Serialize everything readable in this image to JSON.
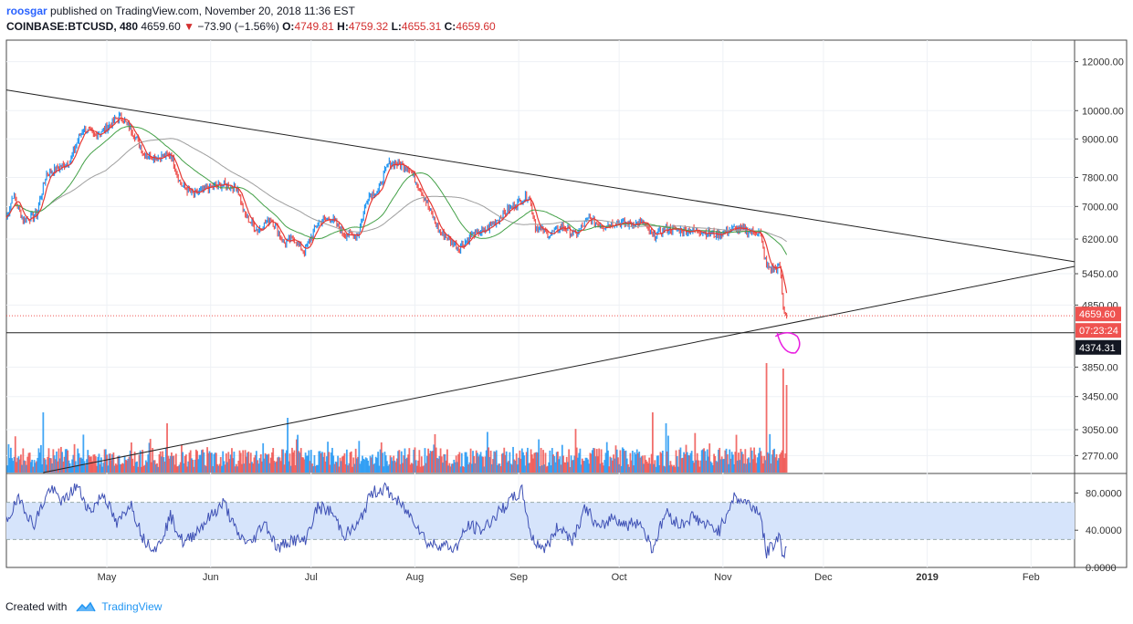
{
  "header": {
    "user": "roosgar",
    "published_text": "published on TradingView.com, November 20, 2018 11:36 EST",
    "symbol": "COINBASE:BTCUSD, 480",
    "last": "4659.60",
    "change": "−73.90 (−1.56%)",
    "open_label": "O:",
    "open": "4749.81",
    "high_label": "H:",
    "high": "4759.32",
    "low_label": "L:",
    "low": "4655.31",
    "close_label": "C:",
    "close": "4659.60"
  },
  "footer": {
    "created_with": "Created with",
    "brand": "TradingView"
  },
  "colors": {
    "up": "#2196f3",
    "down": "#ef5350",
    "ma_fast": "#e53935",
    "ma_mid": "#43a047",
    "ma_slow": "#9e9e9e",
    "rsi": "#3f51b5",
    "rsi_band": "#d6e4fb",
    "marker": "#e91ee0",
    "price_label": "#ef5350",
    "line_label": "#131722"
  },
  "chart_data": [
    {
      "type": "line",
      "name": "price",
      "y_scale": "log",
      "ylim": [
        2600,
        13000
      ],
      "y_ticks": [
        "12000.00",
        "10000.00",
        "9000.00",
        "7800.00",
        "7000.00",
        "6200.00",
        "5450.00",
        "4850.00",
        "3850.00",
        "3450.00",
        "3050.00",
        "2770.00"
      ],
      "x_ticks": [
        "May",
        "Jun",
        "Jul",
        "Aug",
        "Sep",
        "Oct",
        "Nov",
        "Dec",
        "2019",
        "Feb"
      ],
      "x_range": [
        "2018-04-01",
        "2019-02-14"
      ],
      "close_points": [
        [
          "2018-04-01",
          6700
        ],
        [
          "2018-04-03",
          7300
        ],
        [
          "2018-04-06",
          6650
        ],
        [
          "2018-04-10",
          6800
        ],
        [
          "2018-04-13",
          7900
        ],
        [
          "2018-04-17",
          8100
        ],
        [
          "2018-04-20",
          8300
        ],
        [
          "2018-04-24",
          9400
        ],
        [
          "2018-04-27",
          9100
        ],
        [
          "2018-04-30",
          9300
        ],
        [
          "2018-05-05",
          9800
        ],
        [
          "2018-05-09",
          9200
        ],
        [
          "2018-05-12",
          8500
        ],
        [
          "2018-05-16",
          8400
        ],
        [
          "2018-05-20",
          8500
        ],
        [
          "2018-05-23",
          7600
        ],
        [
          "2018-05-27",
          7300
        ],
        [
          "2018-05-31",
          7500
        ],
        [
          "2018-06-05",
          7600
        ],
        [
          "2018-06-09",
          7500
        ],
        [
          "2018-06-11",
          6800
        ],
        [
          "2018-06-15",
          6400
        ],
        [
          "2018-06-19",
          6700
        ],
        [
          "2018-06-23",
          6100
        ],
        [
          "2018-06-26",
          6200
        ],
        [
          "2018-06-29",
          5900
        ],
        [
          "2018-07-03",
          6600
        ],
        [
          "2018-07-07",
          6700
        ],
        [
          "2018-07-11",
          6300
        ],
        [
          "2018-07-15",
          6300
        ],
        [
          "2018-07-18",
          7300
        ],
        [
          "2018-07-21",
          7400
        ],
        [
          "2018-07-24",
          8200
        ],
        [
          "2018-07-27",
          8200
        ],
        [
          "2018-07-30",
          8100
        ],
        [
          "2018-08-03",
          7400
        ],
        [
          "2018-08-08",
          6400
        ],
        [
          "2018-08-11",
          6200
        ],
        [
          "2018-08-14",
          6000
        ],
        [
          "2018-08-18",
          6300
        ],
        [
          "2018-08-22",
          6400
        ],
        [
          "2018-08-26",
          6700
        ],
        [
          "2018-08-30",
          7000
        ],
        [
          "2018-09-04",
          7300
        ],
        [
          "2018-09-06",
          6500
        ],
        [
          "2018-09-10",
          6300
        ],
        [
          "2018-09-14",
          6500
        ],
        [
          "2018-09-18",
          6300
        ],
        [
          "2018-09-22",
          6700
        ],
        [
          "2018-09-26",
          6500
        ],
        [
          "2018-09-30",
          6600
        ],
        [
          "2018-10-04",
          6550
        ],
        [
          "2018-10-08",
          6600
        ],
        [
          "2018-10-11",
          6250
        ],
        [
          "2018-10-15",
          6450
        ],
        [
          "2018-10-20",
          6400
        ],
        [
          "2018-10-25",
          6400
        ],
        [
          "2018-10-30",
          6300
        ],
        [
          "2018-11-04",
          6450
        ],
        [
          "2018-11-08",
          6400
        ],
        [
          "2018-11-12",
          6350
        ],
        [
          "2018-11-14",
          5600
        ],
        [
          "2018-11-16",
          5550
        ],
        [
          "2018-11-18",
          5600
        ],
        [
          "2018-11-19",
          4800
        ],
        [
          "2018-11-20",
          4659.6
        ]
      ],
      "trendlines": [
        {
          "name": "upper",
          "from": [
            "2018-04-01",
            10800
          ],
          "to": [
            "2019-02-14",
            5700
          ]
        },
        {
          "name": "lower",
          "from": [
            "2018-04-12",
            2600
          ],
          "to": [
            "2019-02-14",
            5600
          ]
        },
        {
          "name": "horizontal",
          "from": [
            "2018-04-01",
            4374.31
          ],
          "to": [
            "2019-02-14",
            4374.31
          ]
        }
      ],
      "price_labels": [
        "4659.60",
        "07:23:24",
        "4374.31"
      ],
      "last_price": 4659.6,
      "horizontal_level": 4374.31
    },
    {
      "type": "bar",
      "name": "volume",
      "note_spikes": [
        [
          "2018-04-12",
          0.55
        ],
        [
          "2018-05-19",
          0.45
        ],
        [
          "2018-06-24",
          0.5
        ],
        [
          "2018-10-11",
          0.55
        ],
        [
          "2018-10-15",
          0.45
        ],
        [
          "2018-11-14",
          1.0
        ],
        [
          "2018-11-19",
          0.95
        ],
        [
          "2018-11-20",
          0.8
        ]
      ]
    },
    {
      "type": "line",
      "name": "RSI",
      "ylim": [
        0,
        100
      ],
      "y_ticks": [
        "80.0000",
        "40.0000",
        "0.0000"
      ],
      "band": [
        30,
        70
      ],
      "points": [
        [
          "2018-04-01",
          50
        ],
        [
          "2018-04-05",
          75
        ],
        [
          "2018-04-09",
          45
        ],
        [
          "2018-04-14",
          85
        ],
        [
          "2018-04-18",
          70
        ],
        [
          "2018-04-22",
          88
        ],
        [
          "2018-04-26",
          60
        ],
        [
          "2018-04-30",
          80
        ],
        [
          "2018-05-04",
          45
        ],
        [
          "2018-05-08",
          70
        ],
        [
          "2018-05-12",
          30
        ],
        [
          "2018-05-16",
          20
        ],
        [
          "2018-05-20",
          55
        ],
        [
          "2018-05-24",
          25
        ],
        [
          "2018-05-28",
          40
        ],
        [
          "2018-06-01",
          55
        ],
        [
          "2018-06-05",
          70
        ],
        [
          "2018-06-09",
          35
        ],
        [
          "2018-06-13",
          25
        ],
        [
          "2018-06-17",
          50
        ],
        [
          "2018-06-21",
          20
        ],
        [
          "2018-06-25",
          30
        ],
        [
          "2018-06-29",
          28
        ],
        [
          "2018-07-03",
          65
        ],
        [
          "2018-07-07",
          60
        ],
        [
          "2018-07-11",
          35
        ],
        [
          "2018-07-15",
          45
        ],
        [
          "2018-07-19",
          80
        ],
        [
          "2018-07-23",
          85
        ],
        [
          "2018-07-27",
          70
        ],
        [
          "2018-08-01",
          50
        ],
        [
          "2018-08-05",
          25
        ],
        [
          "2018-08-09",
          25
        ],
        [
          "2018-08-13",
          20
        ],
        [
          "2018-08-17",
          45
        ],
        [
          "2018-08-21",
          40
        ],
        [
          "2018-08-25",
          55
        ],
        [
          "2018-08-29",
          70
        ],
        [
          "2018-09-02",
          82
        ],
        [
          "2018-09-05",
          30
        ],
        [
          "2018-09-09",
          20
        ],
        [
          "2018-09-13",
          45
        ],
        [
          "2018-09-17",
          30
        ],
        [
          "2018-09-21",
          65
        ],
        [
          "2018-09-25",
          40
        ],
        [
          "2018-09-29",
          55
        ],
        [
          "2018-10-03",
          45
        ],
        [
          "2018-10-07",
          50
        ],
        [
          "2018-10-11",
          20
        ],
        [
          "2018-10-15",
          60
        ],
        [
          "2018-10-19",
          45
        ],
        [
          "2018-10-23",
          55
        ],
        [
          "2018-10-27",
          45
        ],
        [
          "2018-10-31",
          40
        ],
        [
          "2018-11-04",
          75
        ],
        [
          "2018-11-08",
          70
        ],
        [
          "2018-11-12",
          60
        ],
        [
          "2018-11-14",
          15
        ],
        [
          "2018-11-16",
          25
        ],
        [
          "2018-11-18",
          35
        ],
        [
          "2018-11-19",
          10
        ],
        [
          "2018-11-20",
          22
        ]
      ]
    }
  ]
}
